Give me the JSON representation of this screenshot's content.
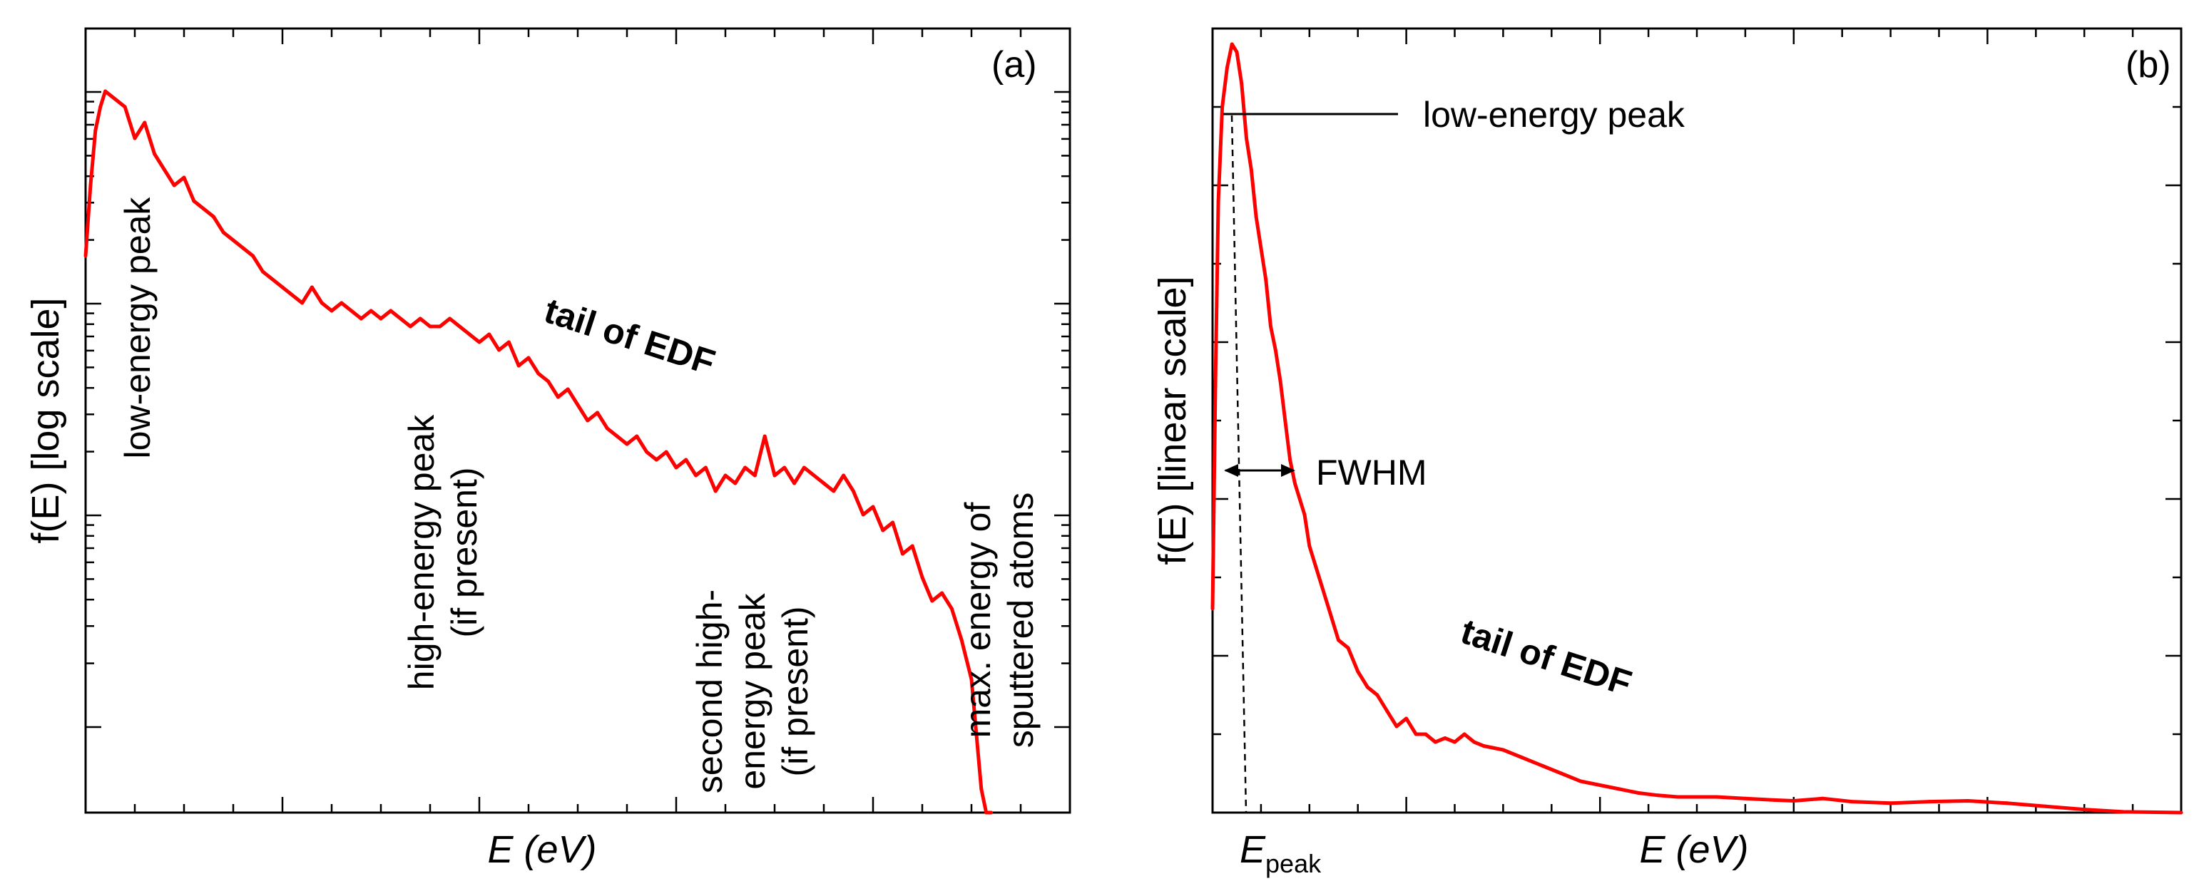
{
  "chart_data": [
    {
      "panel": "(a)",
      "type": "line",
      "xlabel": "E (eV)",
      "ylabel": "f(E) [log scale]",
      "yscale": "log",
      "x_range": [
        0,
        100
      ],
      "y_range": [
        0,
        100
      ],
      "series": [
        {
          "name": "EDF",
          "color": "#ff0000",
          "x": [
            0,
            0.5,
            1,
            1.5,
            2,
            3,
            4,
            5,
            6,
            7,
            8,
            9,
            10,
            11,
            12,
            13,
            14,
            15,
            16,
            17,
            18,
            19,
            20,
            21,
            22,
            23,
            24,
            25,
            26,
            27,
            28,
            29,
            30,
            31,
            32,
            33,
            34,
            35,
            36,
            37,
            38,
            39,
            40,
            41,
            42,
            43,
            44,
            45,
            46,
            47,
            48,
            49,
            50,
            51,
            52,
            53,
            54,
            55,
            56,
            57,
            58,
            59,
            60,
            61,
            62,
            63,
            64,
            65,
            66,
            67,
            68,
            69,
            70,
            71,
            72,
            73,
            74,
            75,
            76,
            77,
            78,
            79,
            80,
            81,
            82,
            83,
            84,
            85,
            86,
            87,
            88,
            89,
            90,
            90.5,
            91,
            91.5,
            92
          ],
          "y": [
            71,
            80,
            87,
            90,
            92,
            91,
            90,
            86,
            88,
            84,
            82,
            80,
            81,
            78,
            77,
            76,
            74,
            73,
            72,
            71,
            69,
            68,
            67,
            66,
            65,
            67,
            65,
            64,
            65,
            64,
            63,
            64,
            63,
            64,
            63,
            62,
            63,
            62,
            62,
            63,
            62,
            61,
            60,
            61,
            59,
            60,
            57,
            58,
            56,
            55,
            53,
            54,
            52,
            50,
            51,
            49,
            48,
            47,
            48,
            46,
            45,
            46,
            44,
            45,
            43,
            44,
            41,
            43,
            42,
            44,
            43,
            48,
            43,
            44,
            42,
            44,
            43,
            42,
            41,
            43,
            41,
            38,
            39,
            36,
            37,
            33,
            34,
            30,
            27,
            28,
            26,
            22,
            17,
            10,
            3,
            -1,
            -2
          ]
        }
      ],
      "annotations": {
        "low_energy_peak": "low-energy peak",
        "high_energy_peak_1": "high-energy peak",
        "high_energy_peak_2": "(if present)",
        "tail": "tail of EDF",
        "second_peak_1": "second high-",
        "second_peak_2": "energy peak",
        "second_peak_3": "(if present)",
        "max_energy_1": "max. energy of",
        "max_energy_2": "sputtered atoms"
      }
    },
    {
      "panel": "(b)",
      "type": "line",
      "xlabel": "E (eV)",
      "ylabel": "f(E) [linear scale]",
      "yscale": "linear",
      "x_range": [
        0,
        100
      ],
      "y_range": [
        0,
        100
      ],
      "series": [
        {
          "name": "EDF",
          "color": "#ff0000",
          "x": [
            0,
            0.3,
            0.6,
            1,
            1.5,
            2,
            2.5,
            3,
            3.5,
            4,
            4.5,
            5,
            5.5,
            6,
            6.5,
            7,
            7.5,
            8,
            8.5,
            9,
            9.5,
            10,
            11,
            12,
            13,
            14,
            15,
            16,
            17,
            18,
            19,
            20,
            21,
            22,
            23,
            24,
            25,
            26,
            27,
            28,
            30,
            32,
            34,
            36,
            38,
            40,
            42,
            44,
            46,
            48,
            50,
            52,
            55,
            58,
            60,
            63,
            66,
            70,
            74,
            78,
            82,
            86,
            90,
            94,
            100
          ],
          "y": [
            26,
            55,
            78,
            90,
            95,
            98,
            97,
            93,
            86,
            82,
            76,
            72,
            68,
            62,
            59,
            55,
            50,
            45,
            42,
            40,
            38,
            34,
            30,
            26,
            22,
            21,
            18,
            16,
            15,
            13,
            11,
            12,
            10,
            10,
            9,
            9.5,
            9,
            10,
            9,
            8.5,
            8,
            7,
            6,
            5,
            4,
            3.5,
            3,
            2.5,
            2.2,
            2,
            2,
            2,
            1.8,
            1.6,
            1.5,
            1.8,
            1.4,
            1.2,
            1.4,
            1.5,
            1.2,
            0.8,
            0.4,
            0.1,
            0
          ]
        }
      ],
      "annotations": {
        "low_energy_peak": "low-energy peak",
        "fwhm": "FWHM",
        "tail": "tail of EDF",
        "e_peak": "E",
        "e_peak_sub": "peak"
      }
    }
  ]
}
